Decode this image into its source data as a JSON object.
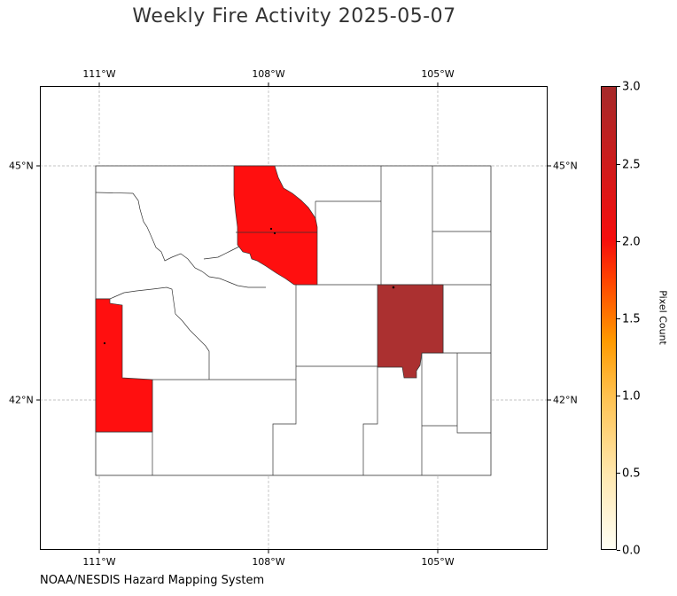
{
  "title": "Weekly Fire Activity 2025-05-07",
  "credit": "NOAA/NESDIS Hazard Mapping System",
  "axes": {
    "lon_ticks": [
      "111°W",
      "108°W",
      "105°W"
    ],
    "lat_ticks": [
      "45°N",
      "42°N"
    ]
  },
  "colorbar": {
    "label": "Pixel Count",
    "ticks": [
      "0.0",
      "0.5",
      "1.0",
      "1.5",
      "2.0",
      "2.5",
      "3.0"
    ],
    "min": 0,
    "max": 3,
    "colors": [
      "#fffff6",
      "#ffe8b0",
      "#ffc250",
      "#ff9a00",
      "#ff4400",
      "#f50d0d",
      "#a52a2a"
    ]
  },
  "map": {
    "region": "Wyoming counties",
    "gridlines": true,
    "fill_colors": {
      "pixel_count_2": "#ff0f0f",
      "pixel_count_3": "#ab3030"
    },
    "highlighted_counties": [
      {
        "pixel_count": 2
      },
      {
        "pixel_count": 2
      },
      {
        "pixel_count": 3
      }
    ]
  }
}
